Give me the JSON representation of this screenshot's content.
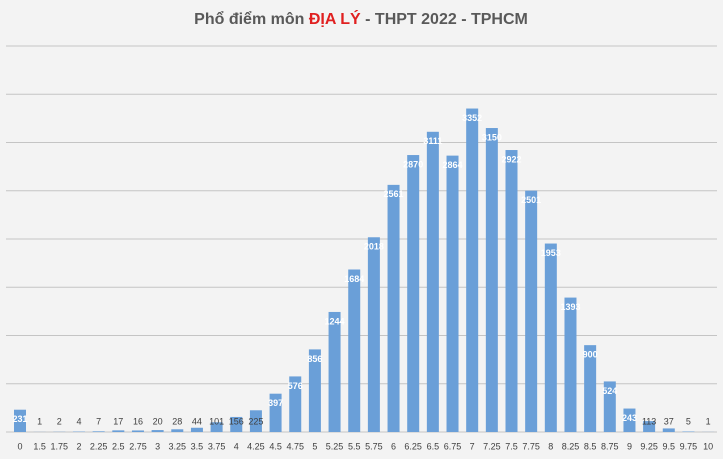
{
  "chart_data": {
    "type": "bar",
    "title": [
      "Phổ điểm môn",
      "ĐỊA LÝ",
      "- THPT 2022 - TPHCM"
    ],
    "categories": [
      "0",
      "1.5",
      "1.75",
      "2",
      "2.25",
      "2.5",
      "2.75",
      "3",
      "3.25",
      "3.5",
      "3.75",
      "4",
      "4.25",
      "4.5",
      "4.75",
      "5",
      "5.25",
      "5.5",
      "5.75",
      "6",
      "6.25",
      "6.5",
      "6.75",
      "7",
      "7.25",
      "7.5",
      "7.75",
      "8",
      "8.25",
      "8.5",
      "8.75",
      "9",
      "9.25",
      "9.5",
      "9.75",
      "10"
    ],
    "values": [
      231,
      1,
      2,
      4,
      7,
      17,
      16,
      20,
      28,
      44,
      101,
      156,
      225,
      397,
      576,
      856,
      1244,
      1684,
      2018,
      2561,
      2870,
      3111,
      2864,
      3352,
      3150,
      2922,
      2501,
      1953,
      1393,
      900,
      524,
      243,
      113,
      37,
      5,
      1
    ],
    "color": "#6a9fd8",
    "ylim": [
      0,
      4000
    ],
    "grid_values": [
      0,
      500,
      1000,
      1500,
      2000,
      2500,
      3000,
      3500,
      4000
    ],
    "grid": true
  }
}
